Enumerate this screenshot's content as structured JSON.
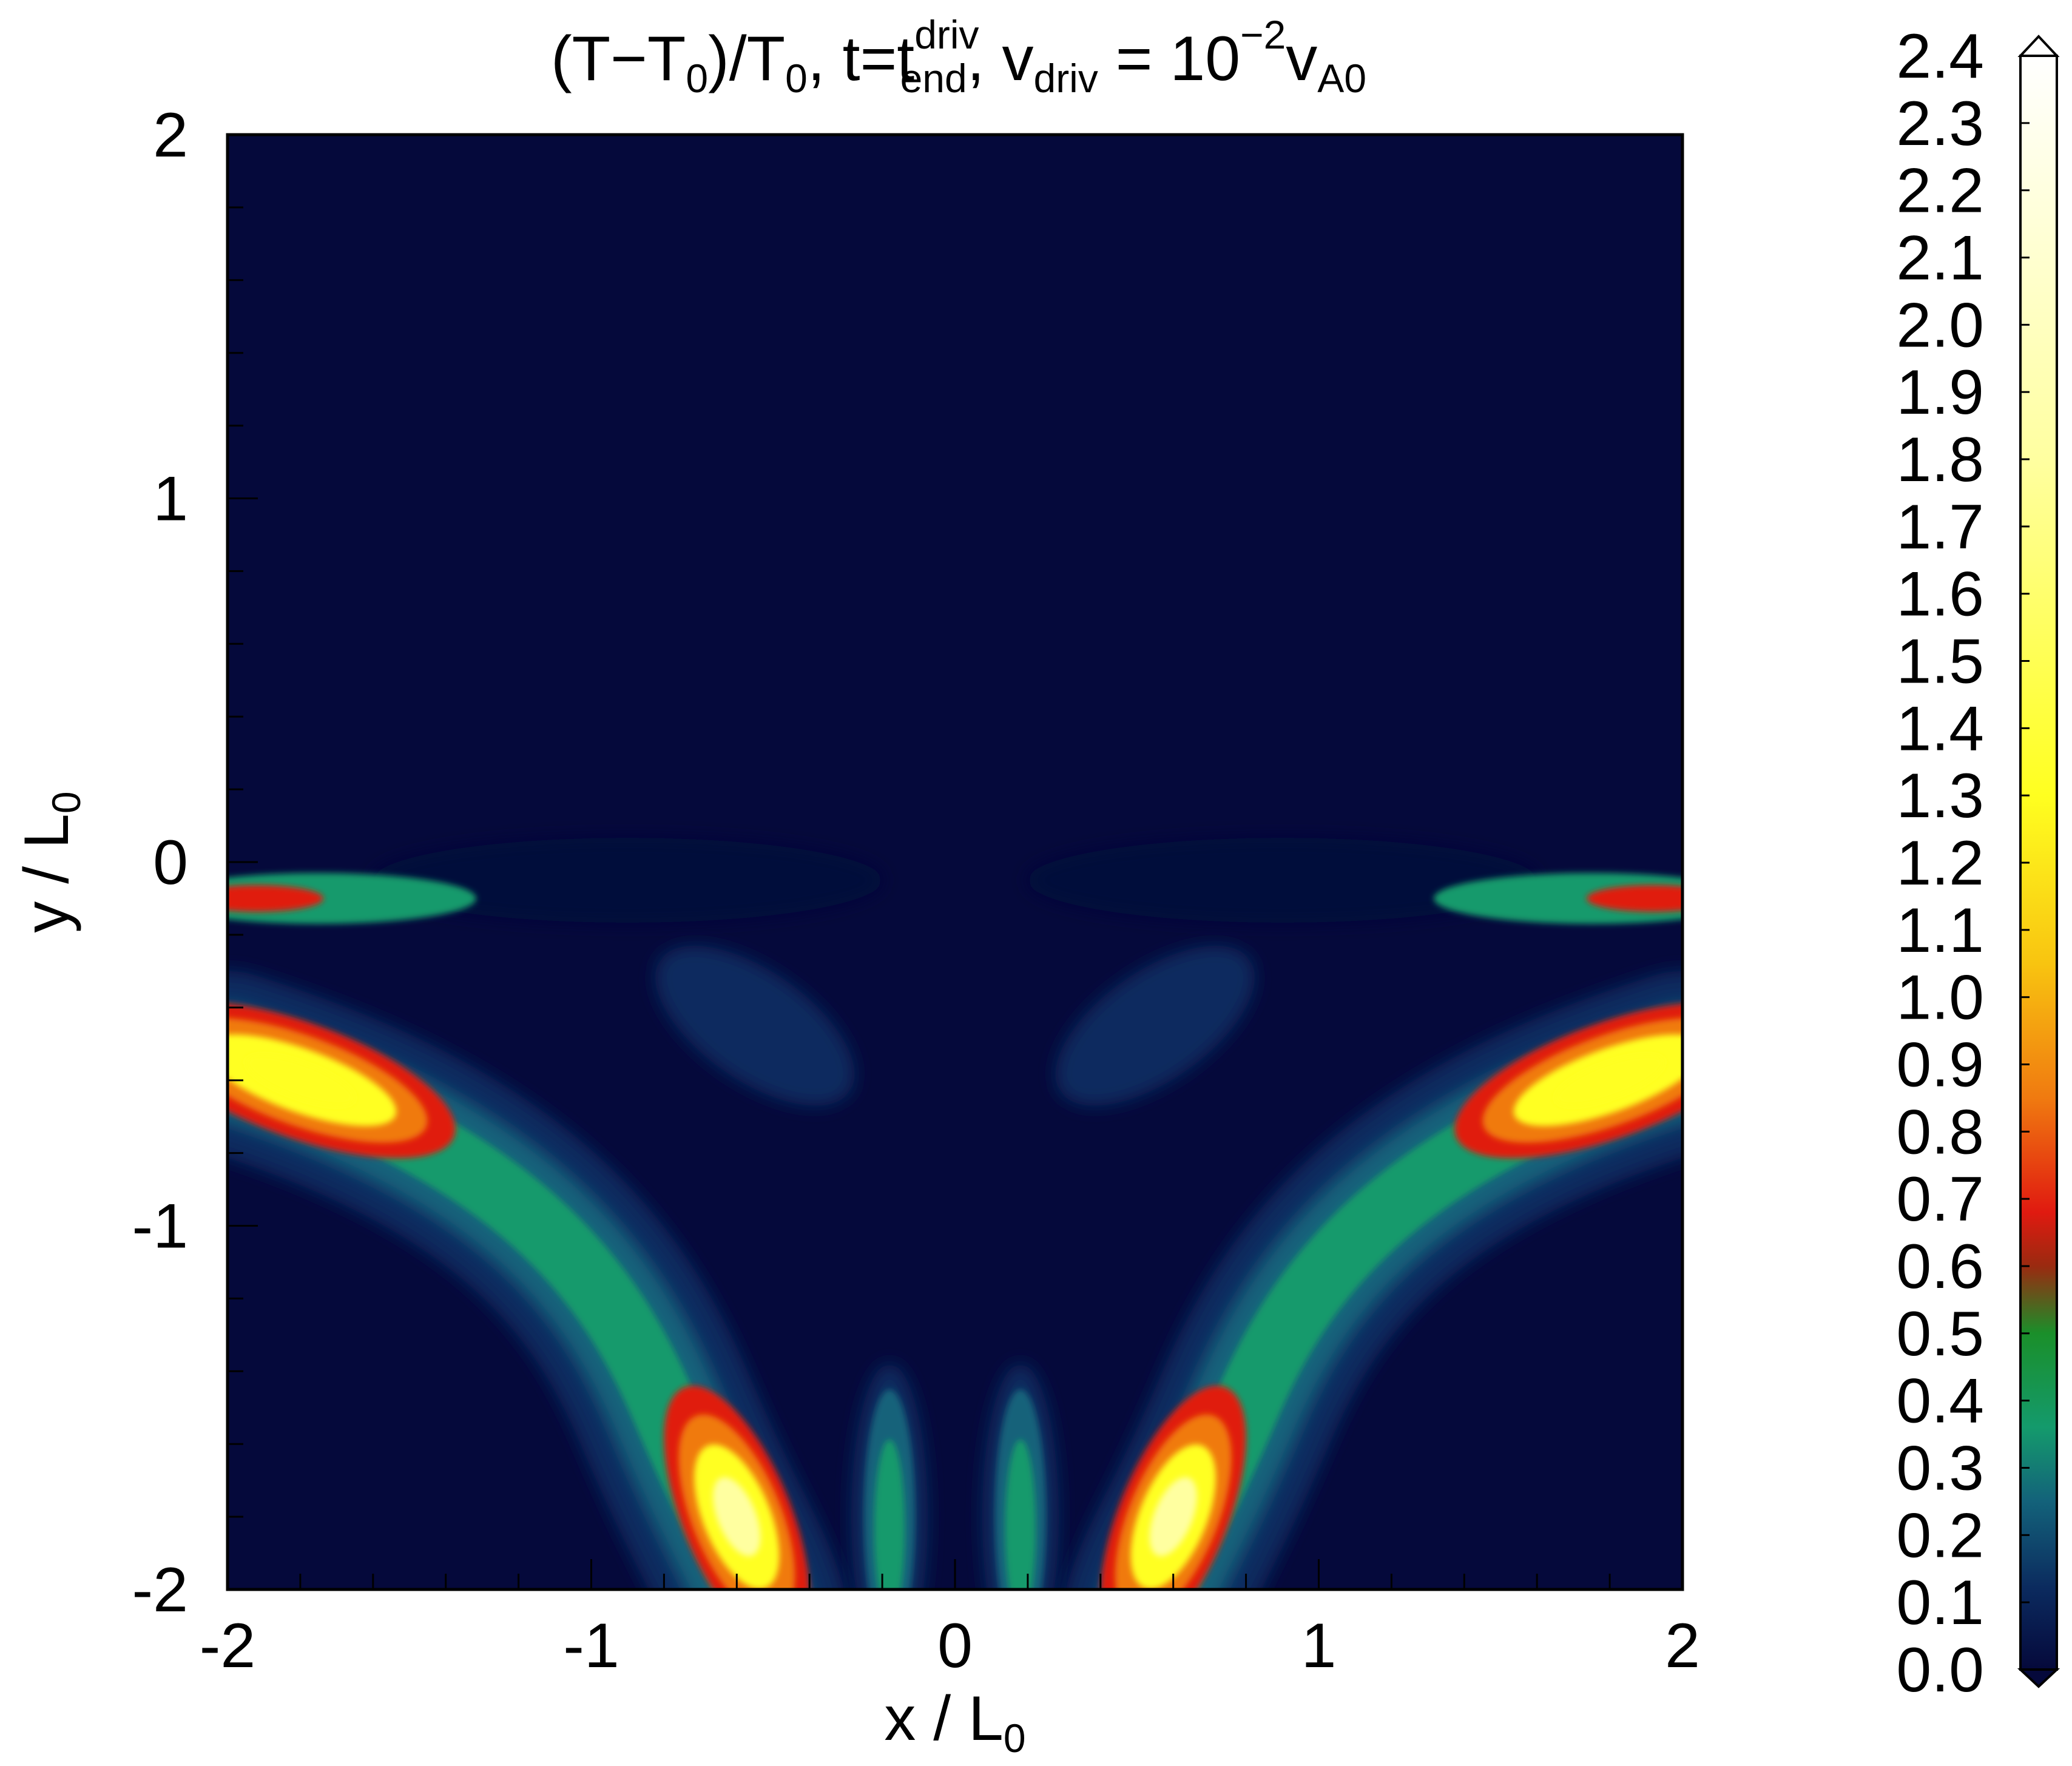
{
  "chart_data": {
    "type": "heatmap",
    "title": {
      "parts": [
        {
          "t": "(T",
          "k": "n"
        },
        {
          "t": "−",
          "k": "n"
        },
        {
          "t": "T",
          "k": "n"
        },
        {
          "t": "0",
          "k": "sub"
        },
        {
          "t": ")/T",
          "k": "n"
        },
        {
          "t": "0",
          "k": "sub"
        },
        {
          "t": ", t=t",
          "k": "n"
        },
        {
          "t": "driv",
          "k": "sup"
        },
        {
          "t": "end",
          "k": "sub2"
        },
        {
          "t": ", v",
          "k": "n"
        },
        {
          "t": "driv",
          "k": "sub"
        },
        {
          "t": " = 10",
          "k": "n"
        },
        {
          "t": "−2",
          "k": "sup"
        },
        {
          "t": "v",
          "k": "n"
        },
        {
          "t": "A0",
          "k": "sub"
        }
      ]
    },
    "xlabel": {
      "main": "x / L",
      "sub": "0"
    },
    "ylabel": {
      "main": "y / L",
      "sub": "0"
    },
    "xlim": [
      -2,
      2
    ],
    "ylim": [
      -2,
      2
    ],
    "x_ticks": [
      "-2",
      "-1",
      "0",
      "1",
      "2"
    ],
    "y_ticks": [
      "2",
      "1",
      "0",
      "-1",
      "-2"
    ],
    "colorbar": {
      "min": 0.0,
      "max": 2.4,
      "ticks": [
        "2.4",
        "2.3",
        "2.2",
        "2.1",
        "2.0",
        "1.9",
        "1.8",
        "1.7",
        "1.6",
        "1.5",
        "1.4",
        "1.3",
        "1.2",
        "1.1",
        "1.0",
        "0.9",
        "0.8",
        "0.7",
        "0.6",
        "0.5",
        "0.4",
        "0.3",
        "0.2",
        "0.1",
        "0.0"
      ],
      "stops": [
        {
          "v": 0.0,
          "c": "#05093b"
        },
        {
          "v": 0.12,
          "c": "#0b2a5e"
        },
        {
          "v": 0.25,
          "c": "#13627a"
        },
        {
          "v": 0.36,
          "c": "#149a6c"
        },
        {
          "v": 0.5,
          "c": "#1a8f2a"
        },
        {
          "v": 0.6,
          "c": "#9a2a10"
        },
        {
          "v": 0.68,
          "c": "#e01a10"
        },
        {
          "v": 0.85,
          "c": "#f07a10"
        },
        {
          "v": 1.05,
          "c": "#f8c410"
        },
        {
          "v": 1.3,
          "c": "#ffff20"
        },
        {
          "v": 1.8,
          "c": "#ffffa0"
        },
        {
          "v": 2.4,
          "c": "#ffffff"
        }
      ]
    },
    "features": [
      {
        "name": "left-arm-hot-lobe",
        "x": -1.8,
        "y": -0.6,
        "peak": 1.7
      },
      {
        "name": "right-arm-hot-lobe",
        "x": 1.8,
        "y": -0.6,
        "peak": 1.7
      },
      {
        "name": "left-bottom-hot-lobe",
        "x": -0.6,
        "y": -1.8,
        "peak": 1.8
      },
      {
        "name": "right-bottom-hot-lobe",
        "x": 0.6,
        "y": -1.8,
        "peak": 1.8
      },
      {
        "name": "left-strip-peak",
        "x": -1.95,
        "y": -0.1,
        "peak": 0.75
      },
      {
        "name": "right-strip-peak",
        "x": 1.95,
        "y": -0.1,
        "peak": 0.75
      },
      {
        "name": "central-left-jet",
        "x": -0.18,
        "y": -1.8,
        "peak": 0.4
      },
      {
        "name": "central-right-jet",
        "x": 0.18,
        "y": -1.8,
        "peak": 0.4
      }
    ]
  }
}
